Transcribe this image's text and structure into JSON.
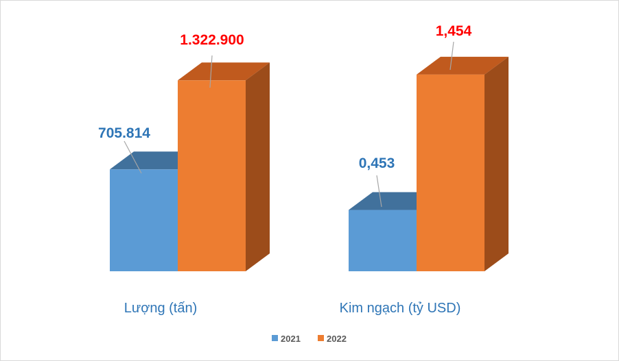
{
  "chart_data": [
    {
      "type": "bar",
      "categories": [
        "Lượng (tấn)"
      ],
      "series": [
        {
          "name": "2021",
          "values": [
            705814
          ],
          "labels": [
            "705.814"
          ]
        },
        {
          "name": "2022",
          "values": [
            1322900
          ],
          "labels": [
            "1.322.900"
          ]
        }
      ],
      "ylim": [
        0,
        1500000
      ]
    },
    {
      "type": "bar",
      "categories": [
        "Kim ngạch (tỷ USD)"
      ],
      "series": [
        {
          "name": "2021",
          "values": [
            0.453
          ],
          "labels": [
            "0,453"
          ]
        },
        {
          "name": "2022",
          "values": [
            1.454
          ],
          "labels": [
            "1,454"
          ]
        }
      ],
      "ylim": [
        0,
        1.6
      ]
    }
  ],
  "legend": {
    "position": "bottom",
    "items": [
      {
        "label": "2021",
        "color": "#5b9bd5"
      },
      {
        "label": "2022",
        "color": "#ed7d31"
      }
    ]
  },
  "colors": {
    "s2021_front": "#5b9bd5",
    "s2021_top": "#41719c",
    "s2022_front": "#ed7d31",
    "s2022_top": "#c05a1e",
    "s2022_side": "#9c4c1a",
    "label_2021": "#2e75b6",
    "label_2022": "#ff0000",
    "category_text": "#2e75b6",
    "leader_line": "#a6a6a6"
  }
}
